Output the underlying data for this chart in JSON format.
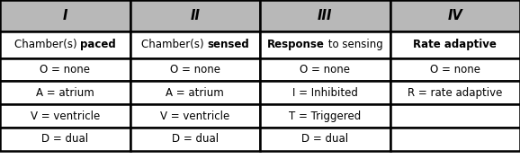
{
  "headers": [
    "I",
    "II",
    "III",
    "IV"
  ],
  "header_bg": "#b8b8b8",
  "header_text_color": "#000000",
  "cell_bg": "#ffffff",
  "border_color": "#000000",
  "row2": [
    [
      [
        "Chamber(s) ",
        false
      ],
      [
        "paced",
        true
      ]
    ],
    [
      [
        "Chamber(s) ",
        false
      ],
      [
        "sensed",
        true
      ]
    ],
    [
      [
        "Response",
        true
      ],
      [
        " to sensing",
        false
      ]
    ],
    [
      [
        "Rate adaptive",
        true
      ]
    ]
  ],
  "row3": [
    "O = none",
    "O = none",
    "O = none",
    "O = none"
  ],
  "row4": [
    "A = atrium",
    "A = atrium",
    "I = Inhibited",
    "R = rate adaptive"
  ],
  "row5": [
    "V = ventricle",
    "V = ventricle",
    "T = Triggered",
    ""
  ],
  "row6": [
    "D = dual",
    "D = dual",
    "D = dual",
    ""
  ],
  "figsize": [
    5.78,
    1.87
  ],
  "dpi": 100,
  "font_size": 8.5,
  "header_font_size": 10.5
}
